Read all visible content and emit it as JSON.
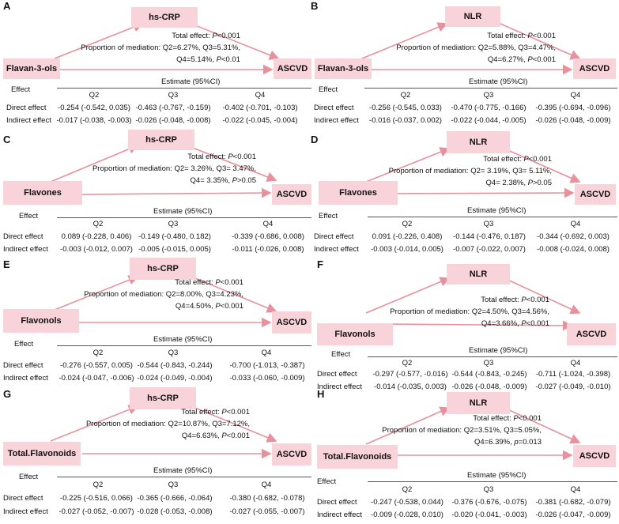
{
  "panels": [
    {
      "letter": "A",
      "mediator": "hs-CRP",
      "exposure": "Flavan-3-ols",
      "outcome": "ASCVD",
      "total_effect_label": "Total effect: ",
      "total_p": "P",
      "total_rest": "<0.001",
      "prop_label": "Proportion of mediation:",
      "prop_line1": "Q2=6.27%, Q3=5.31%,",
      "prop_line2_pre": "Q4=5.14%, ",
      "prop_line2_p": "P",
      "prop_line2_post": "<0.01",
      "effect_label": "Effect",
      "estimate_label": "Estimate (95%CI)",
      "columns": [
        "Q2",
        "Q3",
        "Q4"
      ],
      "rows": [
        {
          "label": "Direct effect",
          "values": [
            "-0.254 (-0.542, 0.035)",
            "-0.463 (-0.767, -0.159)",
            "-0.402 (-0.701, -0.103)"
          ]
        },
        {
          "label": "Indirect effect",
          "values": [
            "-0.017 (-0.038, -0.003)",
            "-0.026 (-0.048, -0.008)",
            "-0.022 (-0.045, -0.004)"
          ]
        }
      ]
    },
    {
      "letter": "B",
      "mediator": "NLR",
      "exposure": "Flavan-3-ols",
      "outcome": "ASCVD",
      "total_effect_label": "Total effect: ",
      "total_p": "P",
      "total_rest": "<0.001",
      "prop_label": "Proportion of mediation:",
      "prop_line1": "Q2=5.88%, Q3=4.47%,",
      "prop_line2_pre": "Q4=6.27%, ",
      "prop_line2_p": "P",
      "prop_line2_post": "<0.001",
      "effect_label": "Effect",
      "estimate_label": "Estimate (95%CI)",
      "columns": [
        "Q2",
        "Q3",
        "Q4"
      ],
      "rows": [
        {
          "label": "Direct effect",
          "values": [
            "-0.256 (-0.545, 0.033)",
            "-0.470 (-0.775, -0.166)",
            "-0.395 (-0.694, -0.096)"
          ]
        },
        {
          "label": "Indirect effect",
          "values": [
            "-0.016 (-0.037, 0.002)",
            "-0.022 (-0.044, -0.005)",
            "-0.026 (-0.048, -0.009)"
          ]
        }
      ]
    },
    {
      "letter": "C",
      "mediator": "hs-CRP",
      "exposure": "Flavones",
      "outcome": "ASCVD",
      "total_effect_label": "Total effect: ",
      "total_p": "P",
      "total_rest": "<0.001",
      "prop_label": "Proportion of mediation:",
      "prop_line1": "Q2= 3.26%, Q3= 3.47%,",
      "prop_line2_pre": "Q4= 3.35%, ",
      "prop_line2_p": "P",
      "prop_line2_post": ">0.05",
      "effect_label": "Effect",
      "estimate_label": "Estimate (95%CI)",
      "columns": [
        "Q2",
        "Q3",
        "Q4"
      ],
      "rows": [
        {
          "label": "Direct effect",
          "values": [
            "0.089 (-0.228, 0.406)",
            "-0.149 (-0.480, 0.182)",
            "-0.339 (-0.686, 0.008)"
          ]
        },
        {
          "label": "Indirect effect",
          "values": [
            "-0.003 (-0.012, 0.007)",
            "-0.005 (-0.015, 0.005)",
            "-0.011 (-0.026, 0.008)"
          ]
        }
      ]
    },
    {
      "letter": "D",
      "mediator": "NLR",
      "exposure": "Flavones",
      "outcome": "ASCVD",
      "total_effect_label": "Total effect: ",
      "total_p": "P",
      "total_rest": "<0.001",
      "prop_label": "Proportion of mediation:",
      "prop_line1": "Q2= 3.19%, Q3= 5.11%,",
      "prop_line2_pre": "Q4= 2.38%, ",
      "prop_line2_p": "P",
      "prop_line2_post": ">0.05",
      "effect_label": "Effect",
      "estimate_label": "Estimate (95%CI)",
      "columns": [
        "Q2",
        "Q3",
        "Q4"
      ],
      "rows": [
        {
          "label": "Direct effect",
          "values": [
            "0.091 (-0.226, 0.408)",
            "-0.144 (-0.476, 0.187)",
            "-0.344 (-0.692, 0.003)"
          ]
        },
        {
          "label": "Indirect effect",
          "values": [
            "-0.003 (-0.014, 0.005)",
            "-0.007 (-0.022, 0.007)",
            "-0.008 (-0.024, 0.008)"
          ]
        }
      ]
    },
    {
      "letter": "E",
      "mediator": "hs-CRP",
      "exposure": "Flavonols",
      "outcome": "ASCVD",
      "total_effect_label": "Total effect: ",
      "total_p": "P",
      "total_rest": "<0.001",
      "prop_label": "Proportion of mediation:",
      "prop_line1": "Q2=8.00%, Q3=4.23%,",
      "prop_line2_pre": "Q4=4.50%, ",
      "prop_line2_p": "P",
      "prop_line2_post": "<0.001",
      "effect_label": "Effect",
      "estimate_label": "Estimate (95%CI)",
      "columns": [
        "Q2",
        "Q3",
        "Q4"
      ],
      "rows": [
        {
          "label": "Direct effect",
          "values": [
            "-0.276 (-0.557, 0.005)",
            "-0.544 (-0.843, -0.244)",
            "-0.700 (-1.013, -0.387)"
          ]
        },
        {
          "label": "Indirect effect",
          "values": [
            "-0.024 (-0.047, -0.006)",
            "-0.024 (-0.049, -0.004)",
            "-0.033 (-0.060, -0.009)"
          ]
        }
      ]
    },
    {
      "letter": "F",
      "mediator": "NLR",
      "exposure": "Flavonols",
      "outcome": "ASCVD",
      "total_effect_label": "Total effect: ",
      "total_p": "P",
      "total_rest": "<0.001",
      "prop_label": "Proportion of mediation:",
      "prop_line1": "Q2=4.50%, Q3=4.56%,",
      "prop_line2_pre": "Q4=3.66%, ",
      "prop_line2_p": "P",
      "prop_line2_post": "<0.001",
      "effect_label": "Effect",
      "estimate_label": "Estimate (95%CI)",
      "columns": [
        "Q2",
        "Q3",
        "Q4"
      ],
      "rows": [
        {
          "label": "Direct effect",
          "values": [
            "-0.297 (-0.577, -0.016)",
            "-0.544 (-0.843, -0.245)",
            "-0.711 (-1.024, -0.398)"
          ]
        },
        {
          "label": "Indirect effect",
          "values": [
            "-0.014 (-0.035, 0.003)",
            "-0.026 (-0.048, -0.009)",
            "-0.027 (-0.049, -0.010)"
          ]
        }
      ]
    },
    {
      "letter": "G",
      "mediator": "hs-CRP",
      "exposure": "Total.Flavonoids",
      "outcome": "ASCVD",
      "total_effect_label": "Total effect: ",
      "total_p": "P",
      "total_rest": "<0.001",
      "prop_label": "Proportion of mediation:",
      "prop_line1": "Q2=10.87%, Q3=7.12%,",
      "prop_line2_pre": "Q4=6.63%, ",
      "prop_line2_p": "P",
      "prop_line2_post": "<0.001",
      "effect_label": "Effect",
      "estimate_label": "Estimate (95%CI)",
      "columns": [
        "Q2",
        "Q3",
        "Q4"
      ],
      "rows": [
        {
          "label": "Direct effect",
          "values": [
            "-0.225 (-0.516, 0.066)",
            "-0.365 (-0.666, -0.064)",
            "-0.380 (-0.682, -0.078)"
          ]
        },
        {
          "label": "Indirect effect",
          "values": [
            "-0.027 (-0.052, -0.007)",
            "-0.028 (-0.053, -0.008)",
            "-0.027 (-0.055, -0.007)"
          ]
        }
      ]
    },
    {
      "letter": "H",
      "mediator": "NLR",
      "exposure": "Total.Flavonoids",
      "outcome": "ASCVD",
      "total_effect_label": "Total effect: ",
      "total_p": "P",
      "total_rest": "<0.001",
      "prop_label": "Proportion of mediation:",
      "prop_line1": "Q2=3.51%, Q3=5.05%,",
      "prop_line2_pre": "Q4=6.39%, ",
      "prop_line2_p": "p",
      "prop_line2_post": "=0.013",
      "effect_label": "Effect",
      "estimate_label": "Estimate (95%CI)",
      "columns": [
        "Q2",
        "Q3",
        "Q4"
      ],
      "rows": [
        {
          "label": "Direct effect",
          "values": [
            "-0.247 (-0.538, 0.044)",
            "-0.376 (-0.676, -0.075)",
            "-0.381 (-0.682, -0.079)"
          ]
        },
        {
          "label": "Indirect effect",
          "values": [
            "-0.009 (-0.028, 0.010)",
            "-0.020 (-0.041, -0.003)",
            "-0.026 (-0.047, -0.009)"
          ]
        }
      ]
    }
  ],
  "colors": {
    "box_fill": "#f8d3d9",
    "arrow": "#e8909c"
  }
}
